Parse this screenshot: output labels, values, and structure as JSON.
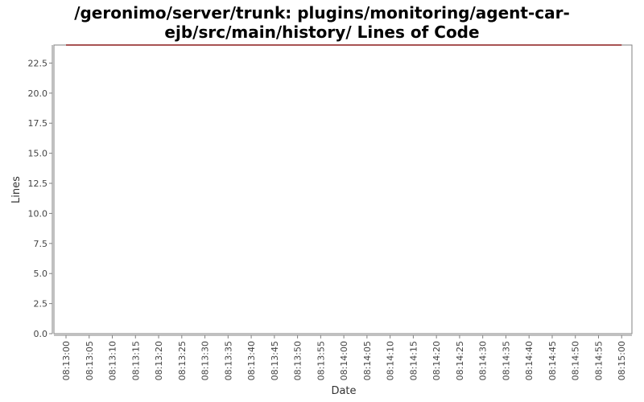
{
  "chart_data": {
    "type": "line",
    "title": "/geronimo/server/trunk: plugins/monitoring/agent-car-ejb/src/main/history/ Lines of Code",
    "title_lines": [
      "/geronimo/server/trunk: plugins/monitoring/agent-car-",
      "ejb/src/main/history/ Lines of Code"
    ],
    "xlabel": "Date",
    "ylabel": "Lines",
    "x_ticks": [
      "08:13:00",
      "08:13:05",
      "08:13:10",
      "08:13:15",
      "08:13:20",
      "08:13:25",
      "08:13:30",
      "08:13:35",
      "08:13:40",
      "08:13:45",
      "08:13:50",
      "08:13:55",
      "08:14:00",
      "08:14:05",
      "08:14:10",
      "08:14:15",
      "08:14:20",
      "08:14:25",
      "08:14:30",
      "08:14:35",
      "08:14:40",
      "08:14:45",
      "08:14:50",
      "08:14:55",
      "08:15:00"
    ],
    "y_ticks": [
      "0.0",
      "2.5",
      "5.0",
      "7.5",
      "10.0",
      "12.5",
      "15.0",
      "17.5",
      "20.0",
      "22.5"
    ],
    "ylim": [
      0,
      24.0
    ],
    "grid": false,
    "legend": "none",
    "series": [
      {
        "color": "#8b1a1a",
        "points": [
          {
            "x": "08:13:00",
            "y": 24
          },
          {
            "x": "08:15:00",
            "y": 24
          }
        ]
      }
    ]
  }
}
